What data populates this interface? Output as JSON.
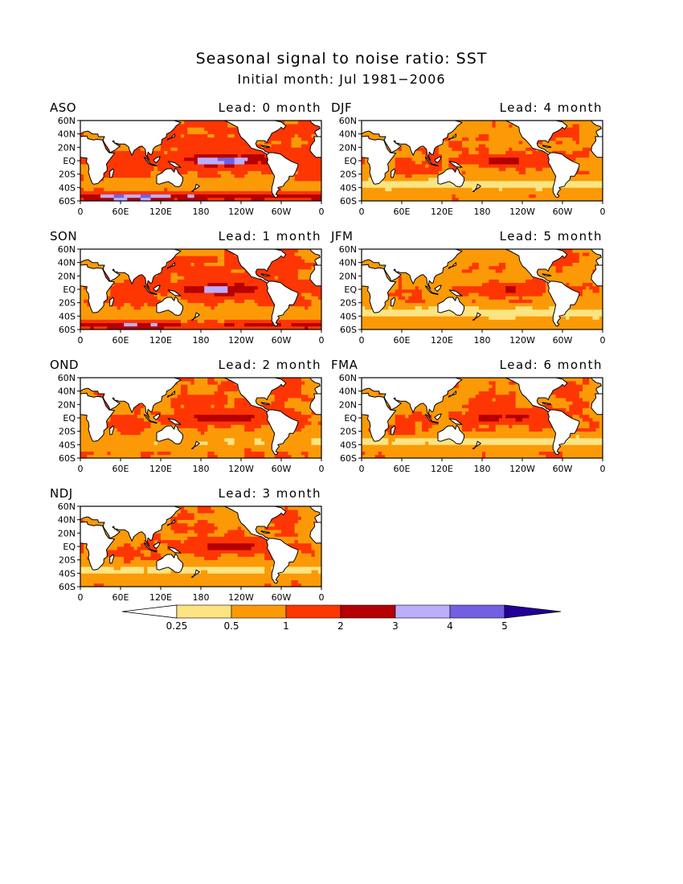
{
  "figure": {
    "title": "Seasonal signal to noise ratio: SST",
    "subtitle": "Initial month: Jul 1981−2006"
  },
  "axes": {
    "lat_labels": [
      "60N",
      "40N",
      "20N",
      "EQ",
      "20S",
      "40S",
      "60S"
    ],
    "lon_labels": [
      "0",
      "60E",
      "120E",
      "180",
      "120W",
      "60W",
      "0"
    ]
  },
  "panels": [
    {
      "season": "ASO",
      "lead": "Lead: 0 month",
      "strength": 1.9,
      "south_blue": 1.0
    },
    {
      "season": "DJF",
      "lead": "Lead: 4 month",
      "strength": 0.85,
      "south_blue": 0.0
    },
    {
      "season": "SON",
      "lead": "Lead: 1 month",
      "strength": 1.7,
      "south_blue": 0.7
    },
    {
      "season": "JFM",
      "lead": "Lead: 5 month",
      "strength": 0.75,
      "south_blue": 0.0
    },
    {
      "season": "OND",
      "lead": "Lead: 2 month",
      "strength": 1.35,
      "south_blue": 0.0
    },
    {
      "season": "FMA",
      "lead": "Lead: 6 month",
      "strength": 1.0,
      "south_blue": 0.0
    },
    {
      "season": "NDJ",
      "lead": "Lead: 3 month",
      "strength": 1.05,
      "south_blue": 0.0
    }
  ],
  "colorbar": {
    "labels": [
      "0.25",
      "0.5",
      "1",
      "2",
      "3",
      "4",
      "5"
    ],
    "colors": [
      "#ffffff",
      "#fde482",
      "#fb9a06",
      "#fd3603",
      "#b50104",
      "#bcaefb",
      "#7360e1",
      "#230099"
    ]
  },
  "land_color": "#ffffff",
  "coast_color": "#000000"
}
